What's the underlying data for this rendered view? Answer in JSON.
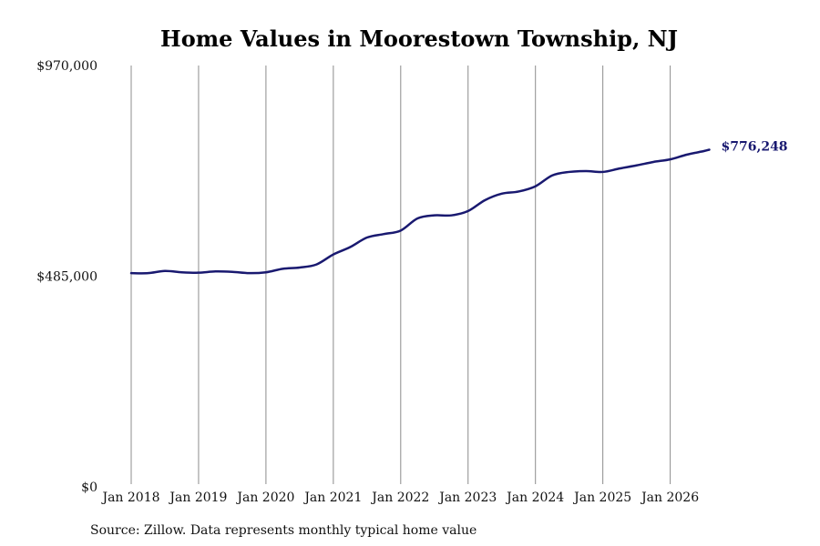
{
  "chart_data": {
    "type": "line",
    "title": "Home Values in Moorestown Township, NJ",
    "xlabel": "",
    "ylabel": "",
    "ylim": [
      0,
      970000
    ],
    "y_ticks": [
      {
        "value": 0,
        "label": "$0"
      },
      {
        "value": 485000,
        "label": "$485,000"
      },
      {
        "value": 970000,
        "label": "$970,000"
      }
    ],
    "x_ticks": [
      {
        "value": 2018,
        "label": "Jan 2018"
      },
      {
        "value": 2019,
        "label": "Jan 2019"
      },
      {
        "value": 2020,
        "label": "Jan 2020"
      },
      {
        "value": 2021,
        "label": "Jan 2021"
      },
      {
        "value": 2022,
        "label": "Jan 2022"
      },
      {
        "value": 2023,
        "label": "Jan 2023"
      },
      {
        "value": 2024,
        "label": "Jan 2024"
      },
      {
        "value": 2025,
        "label": "Jan 2025"
      },
      {
        "value": 2026,
        "label": "Jan 2026"
      }
    ],
    "grid": "vertical",
    "series": [
      {
        "color": "#191970",
        "end_label": "$776,248",
        "x": [
          2018.0,
          2018.25,
          2018.5,
          2018.75,
          2019.0,
          2019.25,
          2019.5,
          2019.75,
          2020.0,
          2020.25,
          2020.5,
          2020.75,
          2021.0,
          2021.25,
          2021.5,
          2021.75,
          2022.0,
          2022.25,
          2022.5,
          2022.75,
          2023.0,
          2023.25,
          2023.5,
          2023.75,
          2024.0,
          2024.25,
          2024.5,
          2024.75,
          2025.0,
          2025.25,
          2025.5,
          2025.75,
          2026.0,
          2026.25,
          2026.5,
          2026.58
        ],
        "values": [
          492000,
          492000,
          497000,
          494000,
          493000,
          496000,
          495000,
          492000,
          494000,
          502000,
          505000,
          512000,
          535000,
          552000,
          574000,
          582000,
          590000,
          618000,
          625000,
          625000,
          635000,
          660000,
          675000,
          680000,
          692000,
          717000,
          725000,
          727000,
          725000,
          733000,
          740000,
          748000,
          754000,
          765000,
          773000,
          776248
        ]
      }
    ]
  },
  "footer": {
    "source": "Source: Zillow. Data represents monthly typical home value"
  }
}
